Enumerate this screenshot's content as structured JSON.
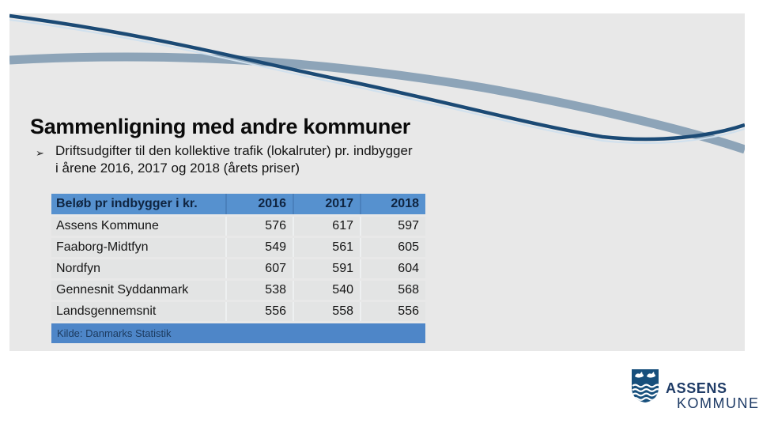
{
  "slide": {
    "title": "Sammenligning med andre kommuner",
    "bullet_marker": "➢",
    "bullet_line1": "Driftsudgifter til den kollektive trafik (lokalruter) pr. indbygger",
    "bullet_line2": "i årene 2016, 2017 og 2018 (årets priser)"
  },
  "table": {
    "header": [
      "Beløb pr indbygger i kr.",
      "2016",
      "2017",
      "2018"
    ],
    "rows": [
      {
        "label": "Assens Kommune",
        "values": [
          "576",
          "617",
          "597"
        ]
      },
      {
        "label": "Faaborg-Midtfyn",
        "values": [
          "549",
          "561",
          "605"
        ]
      },
      {
        "label": "Nordfyn",
        "values": [
          "607",
          "591",
          "604"
        ]
      },
      {
        "label": "Gennesnit Syddanmark",
        "values": [
          "538",
          "540",
          "568"
        ]
      },
      {
        "label": "Landsgennemsnit",
        "values": [
          "556",
          "558",
          "556"
        ]
      }
    ],
    "source_note": "Kilde: Danmarks Statistik"
  },
  "logo": {
    "line1": "ASSENS",
    "line2": "KOMMUNE"
  },
  "colors": {
    "panel_bg": "#e8e8e8",
    "wave_dark": "#1b4a75",
    "wave_steel": "#8da4b8",
    "wave_light": "#cfe0ee",
    "table_header_bg": "#5691cf",
    "table_row_bg": "#e3e4e4",
    "table_source_bg": "#4e86c8",
    "table_header_text": "#0f2440",
    "logo_navy": "#1e3b66",
    "shield_navy": "#174f7c"
  }
}
